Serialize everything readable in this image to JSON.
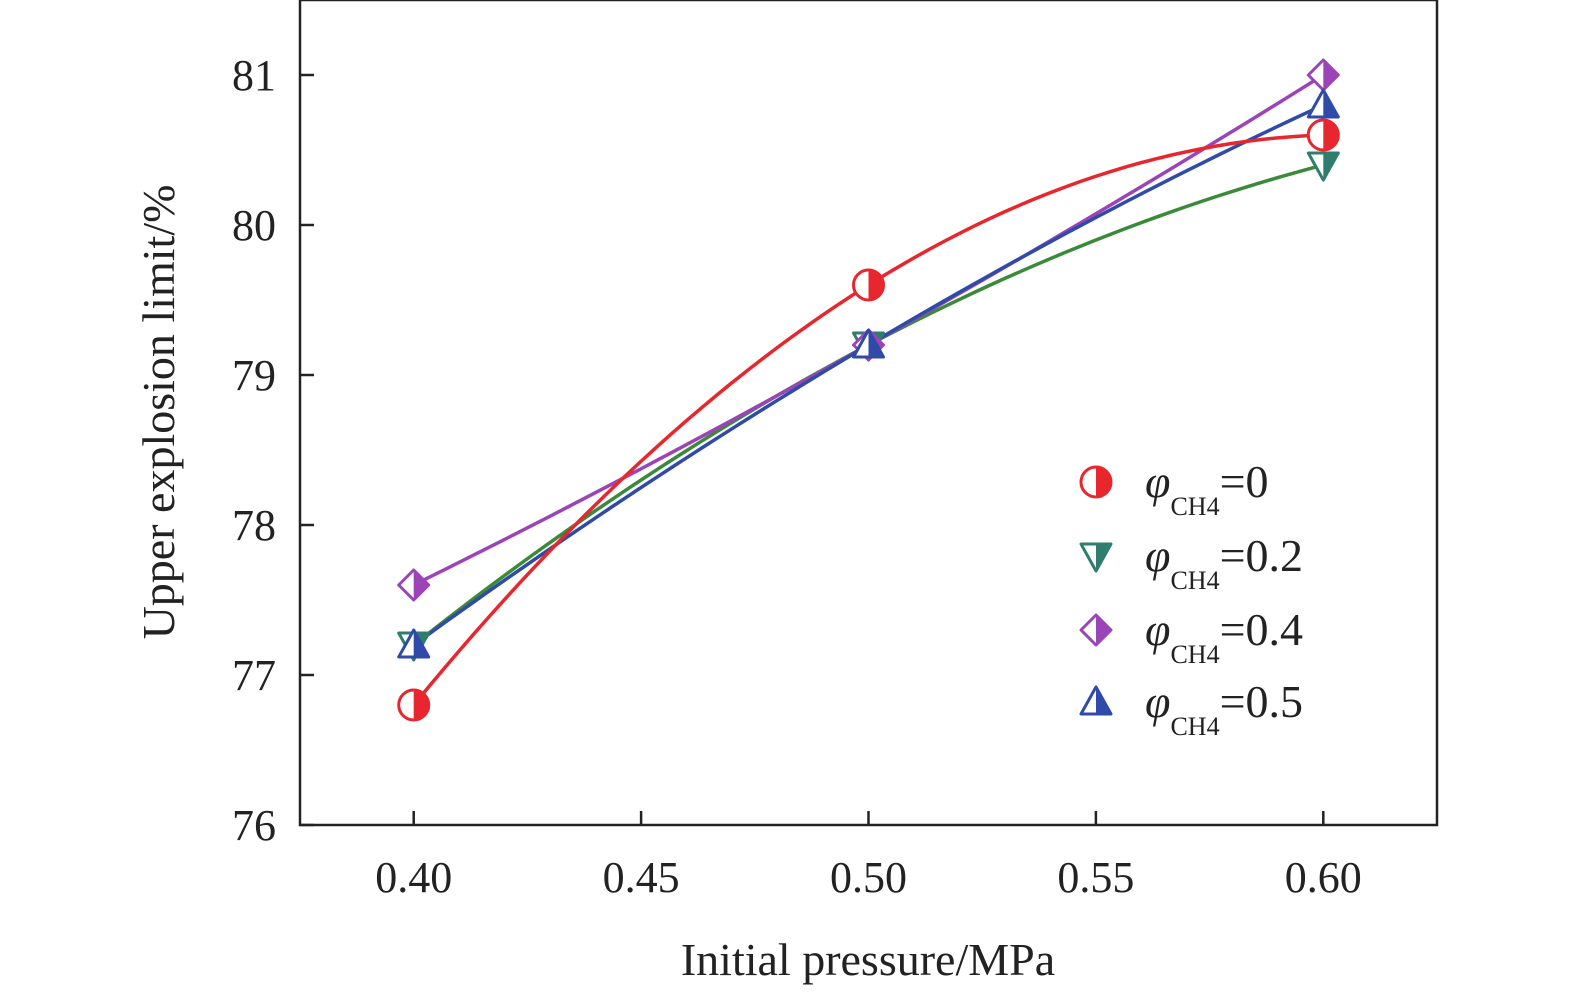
{
  "chart_data": {
    "type": "line",
    "xlabel": "Initial pressure/MPa",
    "ylabel": "Upper explosion limit/%",
    "xlim": [
      0.375,
      0.625
    ],
    "ylim": [
      76,
      81.5
    ],
    "x_ticks": [
      0.4,
      0.45,
      0.5,
      0.55,
      0.6
    ],
    "x_tick_labels": [
      "0.40",
      "0.45",
      "0.50",
      "0.55",
      "0.60"
    ],
    "y_ticks": [
      76,
      77,
      78,
      79,
      80,
      81
    ],
    "y_tick_labels": [
      "76",
      "77",
      "78",
      "79",
      "80",
      "81"
    ],
    "grid": false,
    "legend_position": "right",
    "series": [
      {
        "name_symbol": "φ",
        "name_sub": "CH4",
        "name_value": "=0",
        "color": "#e8262d",
        "marker": "half-circle",
        "x": [
          0.4,
          0.5,
          0.6
        ],
        "y": [
          76.8,
          79.6,
          80.6
        ]
      },
      {
        "name_symbol": "φ",
        "name_sub": "CH4",
        "name_value": "=0.2",
        "color": "#2e7d6e",
        "line_color": "#3a8a3a",
        "marker": "half-triangle-down",
        "x": [
          0.4,
          0.5,
          0.6
        ],
        "y": [
          77.2,
          79.2,
          80.4
        ]
      },
      {
        "name_symbol": "φ",
        "name_sub": "CH4",
        "name_value": "=0.4",
        "color": "#9b44b8",
        "marker": "half-diamond",
        "x": [
          0.4,
          0.5,
          0.6
        ],
        "y": [
          77.6,
          79.2,
          81.0
        ]
      },
      {
        "name_symbol": "φ",
        "name_sub": "CH4",
        "name_value": "=0.5",
        "color": "#2f4aa8",
        "marker": "half-triangle-up",
        "x": [
          0.4,
          0.5,
          0.6
        ],
        "y": [
          77.2,
          79.2,
          80.8
        ]
      }
    ]
  }
}
